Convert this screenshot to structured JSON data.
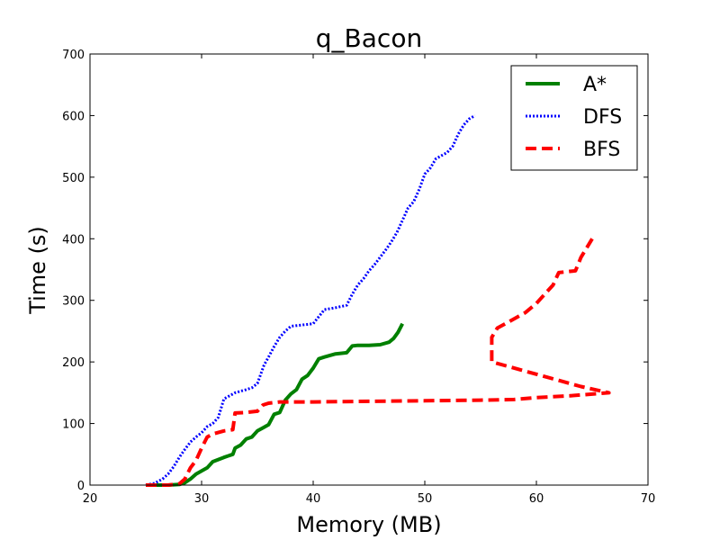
{
  "chart_data": {
    "type": "line",
    "title": "q_Bacon",
    "xlabel": "Memory (MB)",
    "ylabel": "Time (s)",
    "xlim": [
      20,
      70
    ],
    "ylim": [
      0,
      700
    ],
    "xticks": [
      20,
      30,
      40,
      50,
      60,
      70
    ],
    "yticks": [
      0,
      100,
      200,
      300,
      400,
      500,
      600,
      700
    ],
    "legend_position": "upper-right",
    "grid": false,
    "series": [
      {
        "name": "A*",
        "color": "#008000",
        "style": "solid",
        "x": [
          25.0,
          27.0,
          28.0,
          28.5,
          29.0,
          29.5,
          30.0,
          30.5,
          31.0,
          32.0,
          32.8,
          33.0,
          33.5,
          34.0,
          34.5,
          35.0,
          35.5,
          36.0,
          36.5,
          37.0,
          37.5,
          38.0,
          38.5,
          39.0,
          39.5,
          40.0,
          40.5,
          41.0,
          42.0,
          43.0,
          43.5,
          44.0,
          45.0,
          46.0,
          46.8,
          47.2,
          47.6,
          48.0
        ],
        "y": [
          0,
          0,
          1,
          4,
          10,
          18,
          23,
          28,
          38,
          45,
          50,
          60,
          65,
          75,
          78,
          88,
          93,
          98,
          115,
          118,
          138,
          148,
          155,
          172,
          178,
          190,
          205,
          208,
          213,
          215,
          226,
          227,
          227,
          228,
          232,
          238,
          248,
          262
        ]
      },
      {
        "name": "DFS",
        "color": "#0000ff",
        "style": "dotted",
        "x": [
          25.0,
          25.8,
          26.5,
          27.0,
          27.5,
          28.0,
          28.5,
          29.0,
          29.5,
          30.0,
          30.5,
          31.0,
          31.5,
          32.0,
          33.0,
          34.0,
          34.5,
          35.0,
          35.3,
          35.6,
          36.0,
          36.5,
          37.0,
          37.5,
          38.0,
          39.0,
          40.0,
          41.0,
          42.0,
          43.0,
          43.5,
          44.0,
          44.5,
          45.0,
          45.5,
          46.0,
          46.5,
          47.0,
          47.5,
          48.0,
          48.5,
          49.0,
          49.5,
          50.0,
          50.5,
          51.0,
          52.0,
          52.5,
          53.0,
          53.5,
          54.0,
          54.5
        ],
        "y": [
          0,
          3,
          10,
          18,
          30,
          45,
          58,
          70,
          78,
          85,
          95,
          100,
          110,
          140,
          150,
          155,
          158,
          165,
          180,
          195,
          208,
          225,
          240,
          250,
          258,
          260,
          262,
          285,
          288,
          292,
          310,
          325,
          335,
          348,
          358,
          370,
          382,
          395,
          410,
          430,
          450,
          460,
          480,
          505,
          515,
          530,
          540,
          550,
          570,
          585,
          595,
          600
        ]
      },
      {
        "name": "BFS",
        "color": "#ff0000",
        "style": "dashed",
        "x": [
          25.0,
          27.0,
          28.0,
          28.5,
          29.0,
          29.5,
          30.0,
          30.5,
          31.0,
          32.0,
          32.8,
          33.0,
          34.0,
          35.0,
          35.5,
          36.0,
          37.0,
          38.0,
          40.0,
          45.0,
          50.0,
          55.0,
          58.0,
          60.0,
          63.0,
          66.5,
          64.0,
          60.0,
          56.0,
          56.0,
          56.5,
          57.5,
          59.0,
          60.0,
          61.0,
          61.5,
          62.0,
          63.5,
          64.0,
          65.0
        ],
        "y": [
          0,
          0,
          2,
          10,
          28,
          40,
          60,
          78,
          83,
          88,
          90,
          117,
          118,
          120,
          130,
          133,
          135,
          135,
          135,
          136,
          137,
          138,
          139,
          142,
          145,
          150,
          160,
          180,
          200,
          240,
          255,
          265,
          280,
          295,
          315,
          325,
          345,
          348,
          370,
          400
        ]
      }
    ]
  }
}
